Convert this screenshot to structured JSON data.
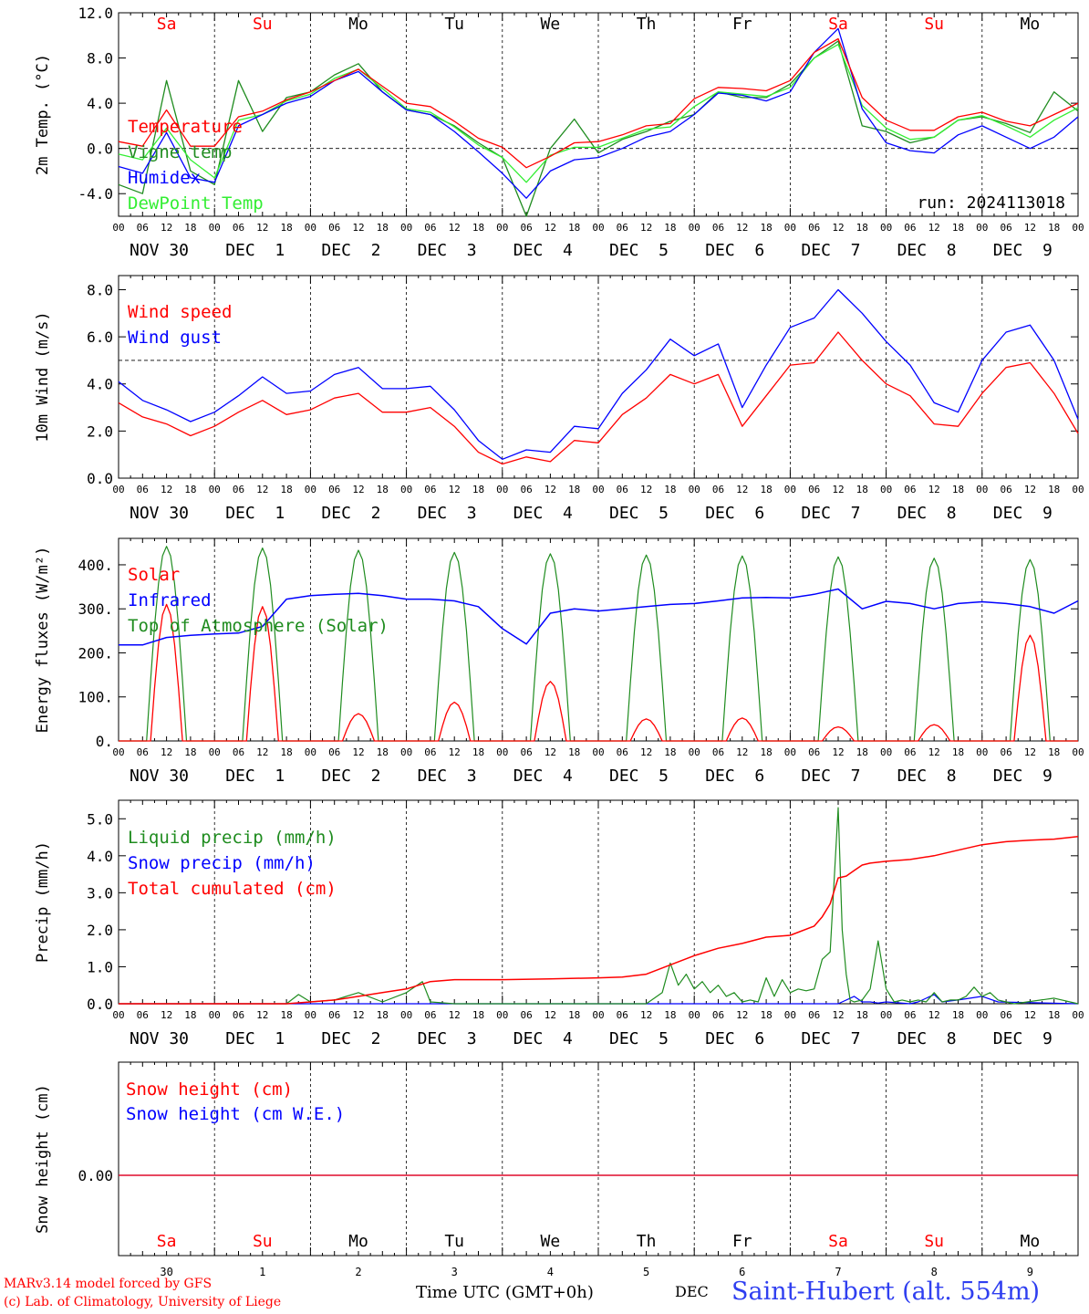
{
  "colors": {
    "red": "#ff0000",
    "green": "#1f8c1f",
    "light_green": "#33ee33",
    "blue": "#0000ff",
    "black": "#000000",
    "weekend": "#ff0000",
    "weekday": "#000000"
  },
  "x_axis": {
    "hour_ticks": [
      "00",
      "06",
      "12",
      "18"
    ],
    "days": [
      {
        "label": "NOV 30",
        "weekday": "Sa",
        "weekend": true,
        "num": "30"
      },
      {
        "label": "DEC  1",
        "weekday": "Su",
        "weekend": true,
        "num": "1"
      },
      {
        "label": "DEC  2",
        "weekday": "Mo",
        "weekend": false,
        "num": "2"
      },
      {
        "label": "DEC  3",
        "weekday": "Tu",
        "weekend": false,
        "num": "3"
      },
      {
        "label": "DEC  4",
        "weekday": "We",
        "weekend": false,
        "num": "4"
      },
      {
        "label": "DEC  5",
        "weekday": "Th",
        "weekend": false,
        "num": "5"
      },
      {
        "label": "DEC  6",
        "weekday": "Fr",
        "weekend": false,
        "num": "6"
      },
      {
        "label": "DEC  7",
        "weekday": "Sa",
        "weekend": true,
        "num": "7"
      },
      {
        "label": "DEC  8",
        "weekday": "Su",
        "weekend": true,
        "num": "8"
      },
      {
        "label": "DEC  9",
        "weekday": "Mo",
        "weekend": false,
        "num": "9"
      }
    ],
    "xlabel": "Time UTC (GMT+0h)",
    "month": "DEC"
  },
  "footer": {
    "model": "MARv3.14 model forced by GFS",
    "copyright": "(c) Lab. of Climatology, University of Liege",
    "station": "Saint-Hubert (alt. 554m)"
  },
  "chart_data": [
    {
      "type": "line",
      "ylabel": "2m Temp. (°C)",
      "ylim": [
        -6,
        12
      ],
      "yticks": [
        12,
        8,
        4,
        0,
        -4
      ],
      "ytick_labels": [
        "12.0",
        "8.0",
        "4.0",
        "0.0",
        "-4.0"
      ],
      "ref_line": 0,
      "annotation": "run: 2024113018",
      "x_hours": [
        0,
        6,
        12,
        18,
        24,
        30,
        36,
        42,
        48,
        54,
        60,
        66,
        72,
        78,
        84,
        90,
        96,
        102,
        108,
        114,
        120,
        126,
        132,
        138,
        144,
        150,
        156,
        162,
        168,
        174,
        180,
        186,
        192,
        198,
        204,
        210,
        216,
        222,
        228,
        234,
        240
      ],
      "series": [
        {
          "name": "Temperature",
          "color": "red",
          "values": [
            0.6,
            0.2,
            3.4,
            0.2,
            0.2,
            2.8,
            3.3,
            4.3,
            5.0,
            6.0,
            7.0,
            5.5,
            4.0,
            3.7,
            2.4,
            0.9,
            0.1,
            -1.7,
            -0.7,
            0.5,
            0.6,
            1.2,
            2.0,
            2.2,
            4.4,
            5.4,
            5.3,
            5.1,
            6.0,
            8.5,
            9.7,
            4.5,
            2.5,
            1.6,
            1.6,
            2.8,
            3.2,
            2.4,
            2.0,
            3.0,
            4.0
          ]
        },
        {
          "name": "Vigne temp",
          "color": "green",
          "values": [
            -3.2,
            -4.0,
            6.0,
            -2.0,
            -3.2,
            6.0,
            1.5,
            4.5,
            5.0,
            6.5,
            7.5,
            5.0,
            3.4,
            3.0,
            2.0,
            0.5,
            -0.8,
            -6.0,
            0.0,
            2.6,
            -0.4,
            0.8,
            1.5,
            2.4,
            3.0,
            5.0,
            4.5,
            4.5,
            5.7,
            8.0,
            9.5,
            2.0,
            1.5,
            0.5,
            1.0,
            2.5,
            2.8,
            2.2,
            1.4,
            5.0,
            3.3
          ]
        },
        {
          "name": "Humidex",
          "color": "blue",
          "values": [
            -1.6,
            -2.2,
            1.4,
            -2.6,
            -3.0,
            2.0,
            3.0,
            4.0,
            4.6,
            6.0,
            6.8,
            5.0,
            3.4,
            3.0,
            1.5,
            -0.3,
            -2.2,
            -4.4,
            -2.0,
            -1.0,
            -0.8,
            0.0,
            1.0,
            1.5,
            3.0,
            4.9,
            4.7,
            4.2,
            5.0,
            8.5,
            10.6,
            3.5,
            0.5,
            -0.2,
            -0.4,
            1.2,
            2.0,
            1.0,
            0.0,
            1.0,
            2.8
          ]
        },
        {
          "name": "DewPoint Temp",
          "color": "light_green",
          "values": [
            -0.5,
            -1.0,
            1.8,
            -1.0,
            -2.6,
            2.5,
            3.0,
            4.2,
            4.8,
            6.2,
            7.0,
            5.3,
            3.5,
            3.2,
            1.9,
            0.3,
            -0.8,
            -3.0,
            -0.6,
            0.1,
            0.1,
            0.9,
            1.7,
            1.9,
            3.7,
            5.0,
            4.8,
            4.6,
            5.4,
            8.0,
            9.2,
            3.8,
            1.8,
            0.8,
            1.0,
            2.5,
            2.9,
            2.0,
            1.0,
            2.5,
            3.6
          ]
        }
      ]
    },
    {
      "type": "line",
      "ylabel": "10m Wind (m/s)",
      "ylim": [
        0,
        8.6
      ],
      "yticks": [
        8,
        6,
        4,
        2,
        0
      ],
      "ytick_labels": [
        "8.0",
        "6.0",
        "4.0",
        "2.0",
        "0.0"
      ],
      "ref_line": 5,
      "x_hours": [
        0,
        6,
        12,
        18,
        24,
        30,
        36,
        42,
        48,
        54,
        60,
        66,
        72,
        78,
        84,
        90,
        96,
        102,
        108,
        114,
        120,
        126,
        132,
        138,
        144,
        150,
        156,
        162,
        168,
        174,
        180,
        186,
        192,
        198,
        204,
        210,
        216,
        222,
        228,
        234,
        240
      ],
      "series": [
        {
          "name": "Wind speed",
          "color": "red",
          "values": [
            3.2,
            2.6,
            2.3,
            1.8,
            2.2,
            2.8,
            3.3,
            2.7,
            2.9,
            3.4,
            3.6,
            2.8,
            2.8,
            3.0,
            2.2,
            1.1,
            0.6,
            0.9,
            0.7,
            1.6,
            1.5,
            2.7,
            3.4,
            4.4,
            4.0,
            4.4,
            2.2,
            3.5,
            4.8,
            4.9,
            6.2,
            5.0,
            4.0,
            3.5,
            2.3,
            2.2,
            3.6,
            4.7,
            4.9,
            3.6,
            1.9
          ]
        },
        {
          "name": "Wind gust",
          "color": "blue",
          "values": [
            4.1,
            3.3,
            2.9,
            2.4,
            2.8,
            3.5,
            4.3,
            3.6,
            3.7,
            4.4,
            4.7,
            3.8,
            3.8,
            3.9,
            2.9,
            1.6,
            0.8,
            1.2,
            1.1,
            2.2,
            2.1,
            3.6,
            4.6,
            5.9,
            5.2,
            5.7,
            3.0,
            4.8,
            6.4,
            6.8,
            8.0,
            7.0,
            5.8,
            4.8,
            3.2,
            2.8,
            5.0,
            6.2,
            6.5,
            5.0,
            2.5
          ]
        }
      ]
    },
    {
      "type": "line",
      "ylabel": "Energy fluxes (W/m²)",
      "ylim": [
        0,
        460
      ],
      "yticks": [
        400,
        300,
        200,
        100,
        0
      ],
      "ytick_labels": [
        "400.",
        "300.",
        "200.",
        "100.",
        "0."
      ],
      "solar_peaks": [
        310,
        305,
        62,
        88,
        135,
        50,
        52,
        32,
        37,
        240
      ],
      "toa_peaks": [
        442,
        438,
        433,
        428,
        425,
        422,
        420,
        418,
        415,
        412
      ],
      "x_hours": [
        0,
        6,
        12,
        18,
        24,
        30,
        36,
        42,
        48,
        54,
        60,
        66,
        72,
        78,
        84,
        90,
        96,
        102,
        108,
        114,
        120,
        126,
        132,
        138,
        144,
        150,
        156,
        162,
        168,
        174,
        180,
        186,
        192,
        198,
        204,
        210,
        216,
        222,
        228,
        234,
        240
      ],
      "series": [
        {
          "name": "Solar",
          "color": "red"
        },
        {
          "name": "Infrared",
          "color": "blue",
          "values": [
            218,
            218,
            235,
            240,
            243,
            245,
            260,
            322,
            330,
            333,
            335,
            330,
            322,
            322,
            318,
            305,
            255,
            220,
            290,
            300,
            295,
            300,
            305,
            310,
            312,
            318,
            325,
            326,
            325,
            333,
            345,
            300,
            317,
            312,
            300,
            312,
            316,
            312,
            305,
            290,
            318
          ]
        },
        {
          "name": "Top of Atmosphere (Solar)",
          "color": "green"
        }
      ]
    },
    {
      "type": "line",
      "ylabel": "Precip (mm/h)",
      "ylim": [
        0,
        5.5
      ],
      "yticks": [
        5,
        4,
        3,
        2,
        1,
        0
      ],
      "ytick_labels": [
        "5.0",
        "4.0",
        "3.0",
        "2.0",
        "1.0",
        "0.0"
      ],
      "series": [
        {
          "name": "Liquid precip (mm/h)",
          "color": "green",
          "x_hours": [
            0,
            42,
            45,
            48,
            54,
            60,
            66,
            72,
            76,
            78,
            84,
            90,
            96,
            114,
            120,
            132,
            134,
            136,
            138,
            140,
            142,
            144,
            146,
            148,
            150,
            152,
            154,
            156,
            158,
            160,
            162,
            164,
            166,
            168,
            170,
            172,
            174,
            176,
            178,
            180,
            181,
            182,
            183,
            184,
            186,
            188,
            190,
            192,
            194,
            196,
            198,
            200,
            202,
            204,
            206,
            208,
            210,
            212,
            214,
            216,
            218,
            220,
            222,
            224,
            234,
            238,
            240
          ],
          "values": [
            0,
            0,
            0.25,
            0.05,
            0.1,
            0.3,
            0.05,
            0.3,
            0.6,
            0.05,
            0,
            0,
            0,
            0,
            0,
            0,
            0.15,
            0.3,
            1.1,
            0.5,
            0.8,
            0.4,
            0.6,
            0.3,
            0.5,
            0.2,
            0.3,
            0.05,
            0.1,
            0.05,
            0.7,
            0.2,
            0.65,
            0.3,
            0.4,
            0.35,
            0.4,
            1.2,
            1.4,
            5.3,
            2.0,
            0.8,
            0.1,
            0.05,
            0.1,
            0.4,
            1.7,
            0.4,
            0.05,
            0.1,
            0.05,
            0.1,
            0.05,
            0.3,
            0.05,
            0.1,
            0.1,
            0.2,
            0.45,
            0.2,
            0.3,
            0.1,
            0.05,
            0,
            0.15,
            0.05,
            0
          ]
        },
        {
          "name": "Snow precip (mm/h)",
          "color": "blue",
          "x_hours": [
            0,
            180,
            184,
            186,
            188,
            190,
            192,
            198,
            200,
            204,
            206,
            210,
            216,
            220,
            240
          ],
          "values": [
            0,
            0,
            0.2,
            0.05,
            0.05,
            0.02,
            0.05,
            0,
            0.05,
            0.25,
            0.05,
            0.1,
            0.2,
            0.05,
            0
          ]
        },
        {
          "name": "Total cumulated (cm)",
          "color": "red",
          "x_hours": [
            0,
            42,
            48,
            54,
            60,
            66,
            72,
            78,
            84,
            96,
            108,
            120,
            126,
            132,
            138,
            144,
            150,
            156,
            162,
            168,
            174,
            176,
            178,
            180,
            182,
            184,
            186,
            188,
            192,
            198,
            204,
            210,
            216,
            222,
            228,
            234,
            240
          ],
          "values": [
            0,
            0,
            0.05,
            0.1,
            0.2,
            0.3,
            0.4,
            0.6,
            0.65,
            0.65,
            0.67,
            0.7,
            0.72,
            0.8,
            1.05,
            1.3,
            1.5,
            1.63,
            1.8,
            1.85,
            2.1,
            2.35,
            2.7,
            3.4,
            3.45,
            3.6,
            3.75,
            3.8,
            3.85,
            3.9,
            4.0,
            4.15,
            4.3,
            4.38,
            4.42,
            4.45,
            4.52
          ]
        }
      ]
    },
    {
      "type": "line",
      "ylabel": "Snow height (cm)",
      "yticks": [
        0
      ],
      "ytick_labels": [
        "0.00"
      ],
      "series": [
        {
          "name": "Snow height (cm)",
          "color": "red",
          "value": 0
        },
        {
          "name": "Snow height (cm W.E.)",
          "color": "blue",
          "value": 0
        }
      ]
    }
  ]
}
